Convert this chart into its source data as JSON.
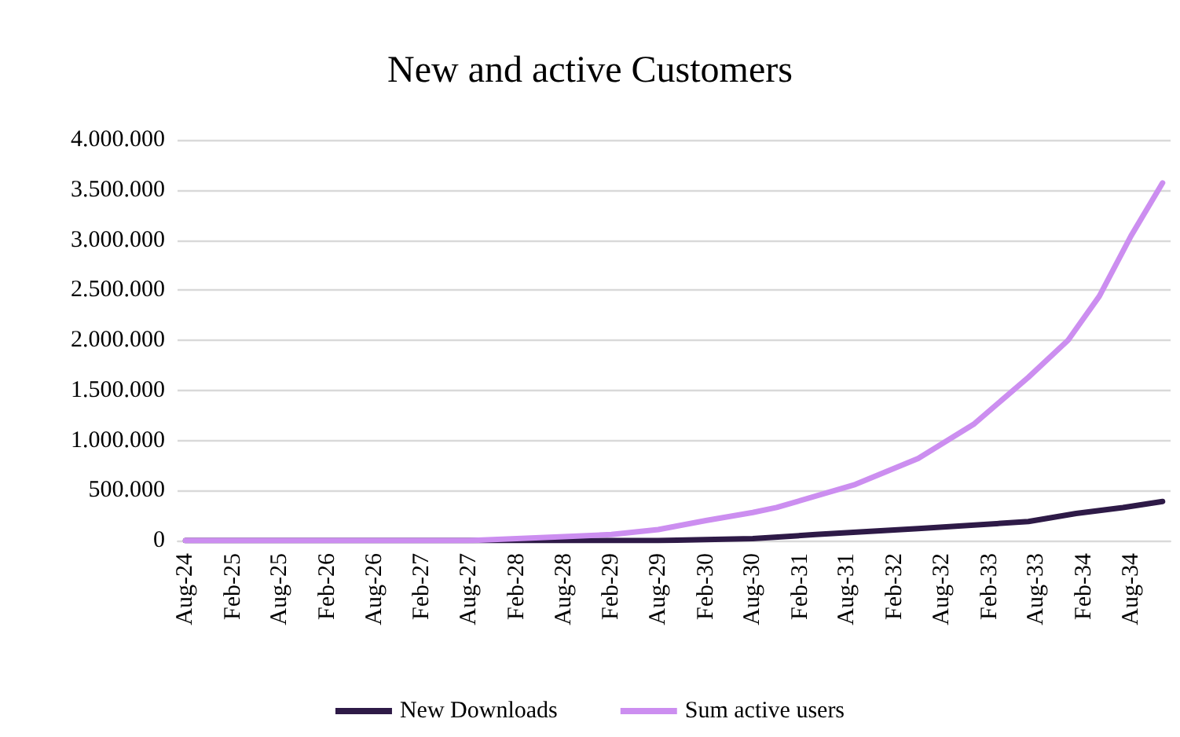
{
  "chart_data": {
    "type": "line",
    "title": "New and active Customers",
    "xlim": [
      "2024-07",
      "2035-01"
    ],
    "xticks": [
      {
        "value": "2024-08",
        "label": "Aug-24"
      },
      {
        "value": "2025-02",
        "label": "Feb-25"
      },
      {
        "value": "2025-08",
        "label": "Aug-25"
      },
      {
        "value": "2026-02",
        "label": "Feb-26"
      },
      {
        "value": "2026-08",
        "label": "Aug-26"
      },
      {
        "value": "2027-02",
        "label": "Feb-27"
      },
      {
        "value": "2027-08",
        "label": "Aug-27"
      },
      {
        "value": "2028-02",
        "label": "Feb-28"
      },
      {
        "value": "2028-08",
        "label": "Aug-28"
      },
      {
        "value": "2029-02",
        "label": "Feb-29"
      },
      {
        "value": "2029-08",
        "label": "Aug-29"
      },
      {
        "value": "2030-02",
        "label": "Feb-30"
      },
      {
        "value": "2030-08",
        "label": "Aug-30"
      },
      {
        "value": "2031-02",
        "label": "Feb-31"
      },
      {
        "value": "2031-08",
        "label": "Aug-31"
      },
      {
        "value": "2032-02",
        "label": "Feb-32"
      },
      {
        "value": "2032-08",
        "label": "Aug-32"
      },
      {
        "value": "2033-02",
        "label": "Feb-33"
      },
      {
        "value": "2033-08",
        "label": "Aug-33"
      },
      {
        "value": "2034-02",
        "label": "Feb-34"
      },
      {
        "value": "2034-08",
        "label": "Aug-34"
      }
    ],
    "ylim": [
      0,
      4000000
    ],
    "yticks": [
      {
        "value": 0,
        "label": "0"
      },
      {
        "value": 500000,
        "label": "500.000"
      },
      {
        "value": 1000000,
        "label": "1.000.000"
      },
      {
        "value": 1500000,
        "label": "1.500.000"
      },
      {
        "value": 2000000,
        "label": "2.000.000"
      },
      {
        "value": 2500000,
        "label": "2.500.000"
      },
      {
        "value": 3000000,
        "label": "3.000.000"
      },
      {
        "value": 3500000,
        "label": "3.500.000"
      },
      {
        "value": 4000000,
        "label": "4.000.000"
      }
    ],
    "grid": "y",
    "legend": "bottom",
    "marker": "none",
    "line_style": "solid",
    "series": [
      {
        "name": "New Downloads",
        "color": "#2e1a47",
        "x": [
          "2024-08",
          "2026-08",
          "2028-08",
          "2029-08",
          "2030-08",
          "2031-04",
          "2032-05",
          "2033-07",
          "2034-01",
          "2034-07",
          "2034-12"
        ],
        "values": [
          0,
          0,
          0,
          0,
          20000,
          60000,
          120000,
          190000,
          270000,
          330000,
          390000
        ]
      },
      {
        "name": "Sum active users",
        "color": "#cc8ef0",
        "x": [
          "2024-08",
          "2025-08",
          "2026-08",
          "2027-02",
          "2027-08",
          "2028-02",
          "2028-08",
          "2029-02",
          "2029-08",
          "2030-02",
          "2030-08",
          "2030-11",
          "2031-09",
          "2032-05",
          "2032-12",
          "2033-07",
          "2033-12",
          "2034-04",
          "2034-08",
          "2034-12"
        ],
        "values": [
          0,
          0,
          0,
          0,
          0,
          20000,
          40000,
          60000,
          110000,
          200000,
          280000,
          330000,
          560000,
          820000,
          1160000,
          1630000,
          2000000,
          2440000,
          3040000,
          3570000
        ]
      }
    ]
  }
}
